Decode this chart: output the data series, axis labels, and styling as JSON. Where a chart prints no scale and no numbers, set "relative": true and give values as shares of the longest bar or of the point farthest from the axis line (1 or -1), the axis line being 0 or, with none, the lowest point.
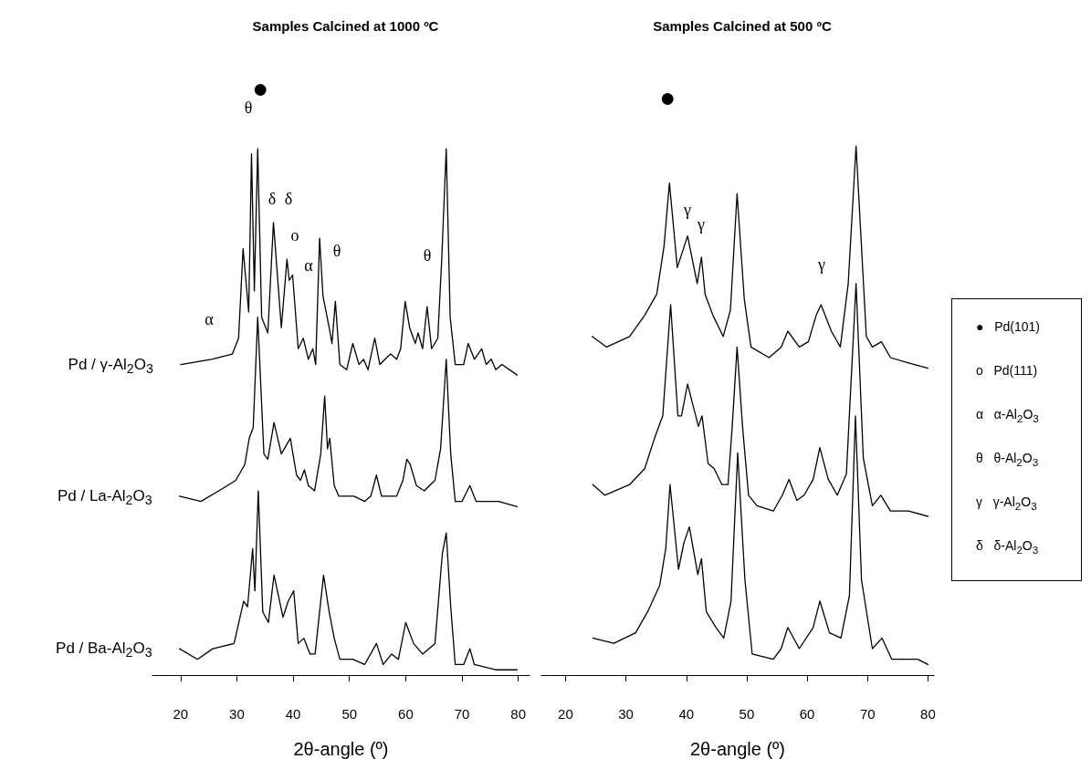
{
  "chart_data": [
    {
      "type": "line",
      "title": "Samples Calcined at 1000 ºC",
      "xlabel": "2θ-angle (º)",
      "xlim": [
        15,
        82
      ],
      "xticks": [
        20,
        30,
        40,
        50,
        60,
        70,
        80
      ],
      "relative": true,
      "marker": "none",
      "line_style": "solid",
      "annotations": [
        "●",
        "θ",
        "δ",
        "δ",
        "o",
        "α",
        "θ",
        "θ",
        "α"
      ],
      "series": [
        {
          "name": "Pd / γ-Al$_{2}$O$_{3}$",
          "color": "#000000",
          "x": [
            20,
            25.5,
            29.2,
            30.3,
            31.1,
            32.1,
            32.6,
            33.1,
            33.7,
            34.4,
            35.5,
            36.5,
            37.9,
            38.9,
            39.3,
            39.9,
            40.9,
            41.8,
            42.7,
            43.5,
            44.0,
            44.7,
            45.3,
            46.4,
            46.9,
            47.5,
            48.3,
            49.5,
            50.6,
            51.7,
            52.5,
            53.3,
            54.5,
            55.4,
            57.3,
            58.4,
            59.1,
            59.9,
            60.7,
            61.7,
            62.2,
            63.0,
            63.8,
            64.6,
            65.7,
            66.4,
            67.2,
            67.9,
            68.8,
            70.3,
            71.1,
            72.2,
            73.5,
            74.3,
            75.2,
            76.0,
            77.1,
            79.8
          ],
          "values": [
            0.59,
            0.6,
            0.61,
            0.64,
            0.81,
            0.69,
            0.99,
            0.73,
            1.0,
            0.68,
            0.65,
            0.86,
            0.66,
            0.79,
            0.75,
            0.76,
            0.62,
            0.64,
            0.6,
            0.62,
            0.59,
            0.83,
            0.72,
            0.66,
            0.63,
            0.71,
            0.59,
            0.58,
            0.63,
            0.59,
            0.6,
            0.58,
            0.64,
            0.59,
            0.61,
            0.6,
            0.62,
            0.71,
            0.66,
            0.63,
            0.65,
            0.62,
            0.7,
            0.62,
            0.64,
            0.79,
            1.0,
            0.68,
            0.59,
            0.59,
            0.63,
            0.6,
            0.62,
            0.59,
            0.6,
            0.58,
            0.59,
            0.57
          ]
        },
        {
          "name": "Pd / La-Al$_{2}$O$_{3}$",
          "color": "#000000",
          "x": [
            19.8,
            23.6,
            26.8,
            29.8,
            31.4,
            32.2,
            32.9,
            33.7,
            34.8,
            35.5,
            36.6,
            37.9,
            39.5,
            40.6,
            41.3,
            42.0,
            42.7,
            43.8,
            44.9,
            45.6,
            46.1,
            46.5,
            47.3,
            48.1,
            50.8,
            52.7,
            53.8,
            54.8,
            55.7,
            58.4,
            59.5,
            60.2,
            60.8,
            61.9,
            63.3,
            65.2,
            66.2,
            67.2,
            68.0,
            68.8,
            70.0,
            71.4,
            72.5,
            76.5,
            79.8
          ],
          "values": [
            0.34,
            0.33,
            0.35,
            0.37,
            0.4,
            0.45,
            0.47,
            0.68,
            0.42,
            0.41,
            0.48,
            0.42,
            0.45,
            0.38,
            0.37,
            0.39,
            0.36,
            0.35,
            0.42,
            0.53,
            0.43,
            0.45,
            0.36,
            0.34,
            0.34,
            0.33,
            0.34,
            0.38,
            0.34,
            0.34,
            0.37,
            0.41,
            0.4,
            0.36,
            0.35,
            0.37,
            0.43,
            0.6,
            0.42,
            0.33,
            0.33,
            0.36,
            0.33,
            0.33,
            0.32
          ]
        },
        {
          "name": "Pd / Ba-Al$_{2}$O$_{3}$",
          "color": "#000000",
          "x": [
            19.8,
            23.0,
            25.7,
            29.5,
            31.2,
            31.9,
            32.8,
            33.2,
            33.8,
            34.6,
            35.6,
            36.6,
            38.2,
            39.1,
            40.1,
            40.9,
            41.9,
            43.0,
            43.9,
            45.4,
            46.4,
            47.3,
            48.3,
            50.6,
            52.7,
            54.8,
            56.0,
            57.5,
            58.7,
            60.0,
            61.4,
            63.0,
            65.2,
            66.5,
            67.2,
            68.0,
            68.8,
            70.3,
            71.4,
            72.2,
            76.0,
            79.8
          ],
          "values": [
            0.05,
            0.03,
            0.05,
            0.06,
            0.14,
            0.13,
            0.24,
            0.16,
            0.35,
            0.12,
            0.1,
            0.19,
            0.11,
            0.14,
            0.16,
            0.06,
            0.07,
            0.04,
            0.04,
            0.19,
            0.12,
            0.07,
            0.03,
            0.03,
            0.02,
            0.06,
            0.02,
            0.04,
            0.03,
            0.1,
            0.06,
            0.04,
            0.06,
            0.23,
            0.27,
            0.13,
            0.02,
            0.02,
            0.05,
            0.02,
            0.01,
            0.01
          ]
        }
      ]
    },
    {
      "type": "line",
      "title": "Samples Calcined at 500 ºC",
      "xlabel": "2θ-angle (º)",
      "xlim": [
        16,
        81
      ],
      "xticks": [
        20,
        30,
        40,
        50,
        60,
        70,
        80
      ],
      "relative": true,
      "marker": "none",
      "line_style": "solid",
      "annotations": [
        "●",
        "γ",
        "γ",
        "γ",
        "●   Pd(101)",
        "o   Pd(111)",
        "α   α-Al$_{2}$O$_{3}$",
        "θ   θ-Al$_{2}$O$_{3}$",
        "γ   γ-Al$_{2}$O$_{3}$",
        "δ   δ-Al$_{2}$O$_{3}$"
      ],
      "series": [
        {
          "color": "#000000",
          "x": [
            24.4,
            26.8,
            30.6,
            33.1,
            35.1,
            36.3,
            37.2,
            38.5,
            40.2,
            41.8,
            42.5,
            43.1,
            44.4,
            46.1,
            47.3,
            48.4,
            49.6,
            50.7,
            53.7,
            55.7,
            56.8,
            58.7,
            60.2,
            61.5,
            62.3,
            64.0,
            65.5,
            66.8,
            68.1,
            69.8,
            70.8,
            72.3,
            73.8,
            76.8,
            80.0
          ],
          "values": [
            0.64,
            0.62,
            0.64,
            0.68,
            0.72,
            0.81,
            0.93,
            0.77,
            0.83,
            0.74,
            0.79,
            0.72,
            0.68,
            0.64,
            0.69,
            0.91,
            0.71,
            0.62,
            0.6,
            0.62,
            0.65,
            0.62,
            0.63,
            0.68,
            0.7,
            0.65,
            0.62,
            0.74,
            1.0,
            0.64,
            0.62,
            0.63,
            0.6,
            0.59,
            0.58
          ]
        },
        {
          "color": "#000000",
          "x": [
            24.5,
            26.5,
            30.6,
            33.1,
            34.8,
            36.1,
            37.4,
            38.6,
            39.2,
            40.2,
            42.0,
            42.6,
            43.6,
            44.6,
            45.9,
            46.9,
            47.6,
            48.4,
            49.3,
            50.3,
            51.7,
            54.4,
            55.9,
            57.0,
            58.3,
            59.5,
            61.0,
            62.1,
            63.5,
            65.0,
            66.5,
            68.1,
            69.3,
            70.8,
            72.2,
            73.8,
            76.8,
            80.0
          ],
          "values": [
            0.36,
            0.34,
            0.36,
            0.39,
            0.45,
            0.49,
            0.7,
            0.49,
            0.49,
            0.55,
            0.47,
            0.49,
            0.4,
            0.39,
            0.36,
            0.36,
            0.47,
            0.62,
            0.47,
            0.34,
            0.32,
            0.31,
            0.34,
            0.37,
            0.33,
            0.34,
            0.37,
            0.43,
            0.37,
            0.34,
            0.38,
            0.74,
            0.41,
            0.32,
            0.34,
            0.31,
            0.31,
            0.3
          ]
        },
        {
          "color": "#000000",
          "x": [
            24.5,
            28.0,
            31.6,
            33.6,
            35.6,
            36.6,
            37.3,
            38.7,
            39.6,
            40.5,
            41.9,
            42.5,
            43.3,
            44.9,
            46.2,
            47.4,
            48.5,
            49.7,
            50.9,
            54.4,
            55.7,
            56.8,
            58.7,
            61.0,
            62.1,
            63.7,
            65.6,
            67.0,
            68.0,
            69.0,
            70.8,
            72.4,
            74.0,
            78.3,
            80.0
          ],
          "values": [
            0.07,
            0.06,
            0.08,
            0.12,
            0.17,
            0.24,
            0.36,
            0.2,
            0.25,
            0.28,
            0.19,
            0.22,
            0.12,
            0.09,
            0.07,
            0.14,
            0.42,
            0.18,
            0.04,
            0.03,
            0.05,
            0.09,
            0.05,
            0.09,
            0.14,
            0.08,
            0.07,
            0.15,
            0.49,
            0.18,
            0.05,
            0.07,
            0.03,
            0.03,
            0.02
          ]
        }
      ]
    }
  ]
}
